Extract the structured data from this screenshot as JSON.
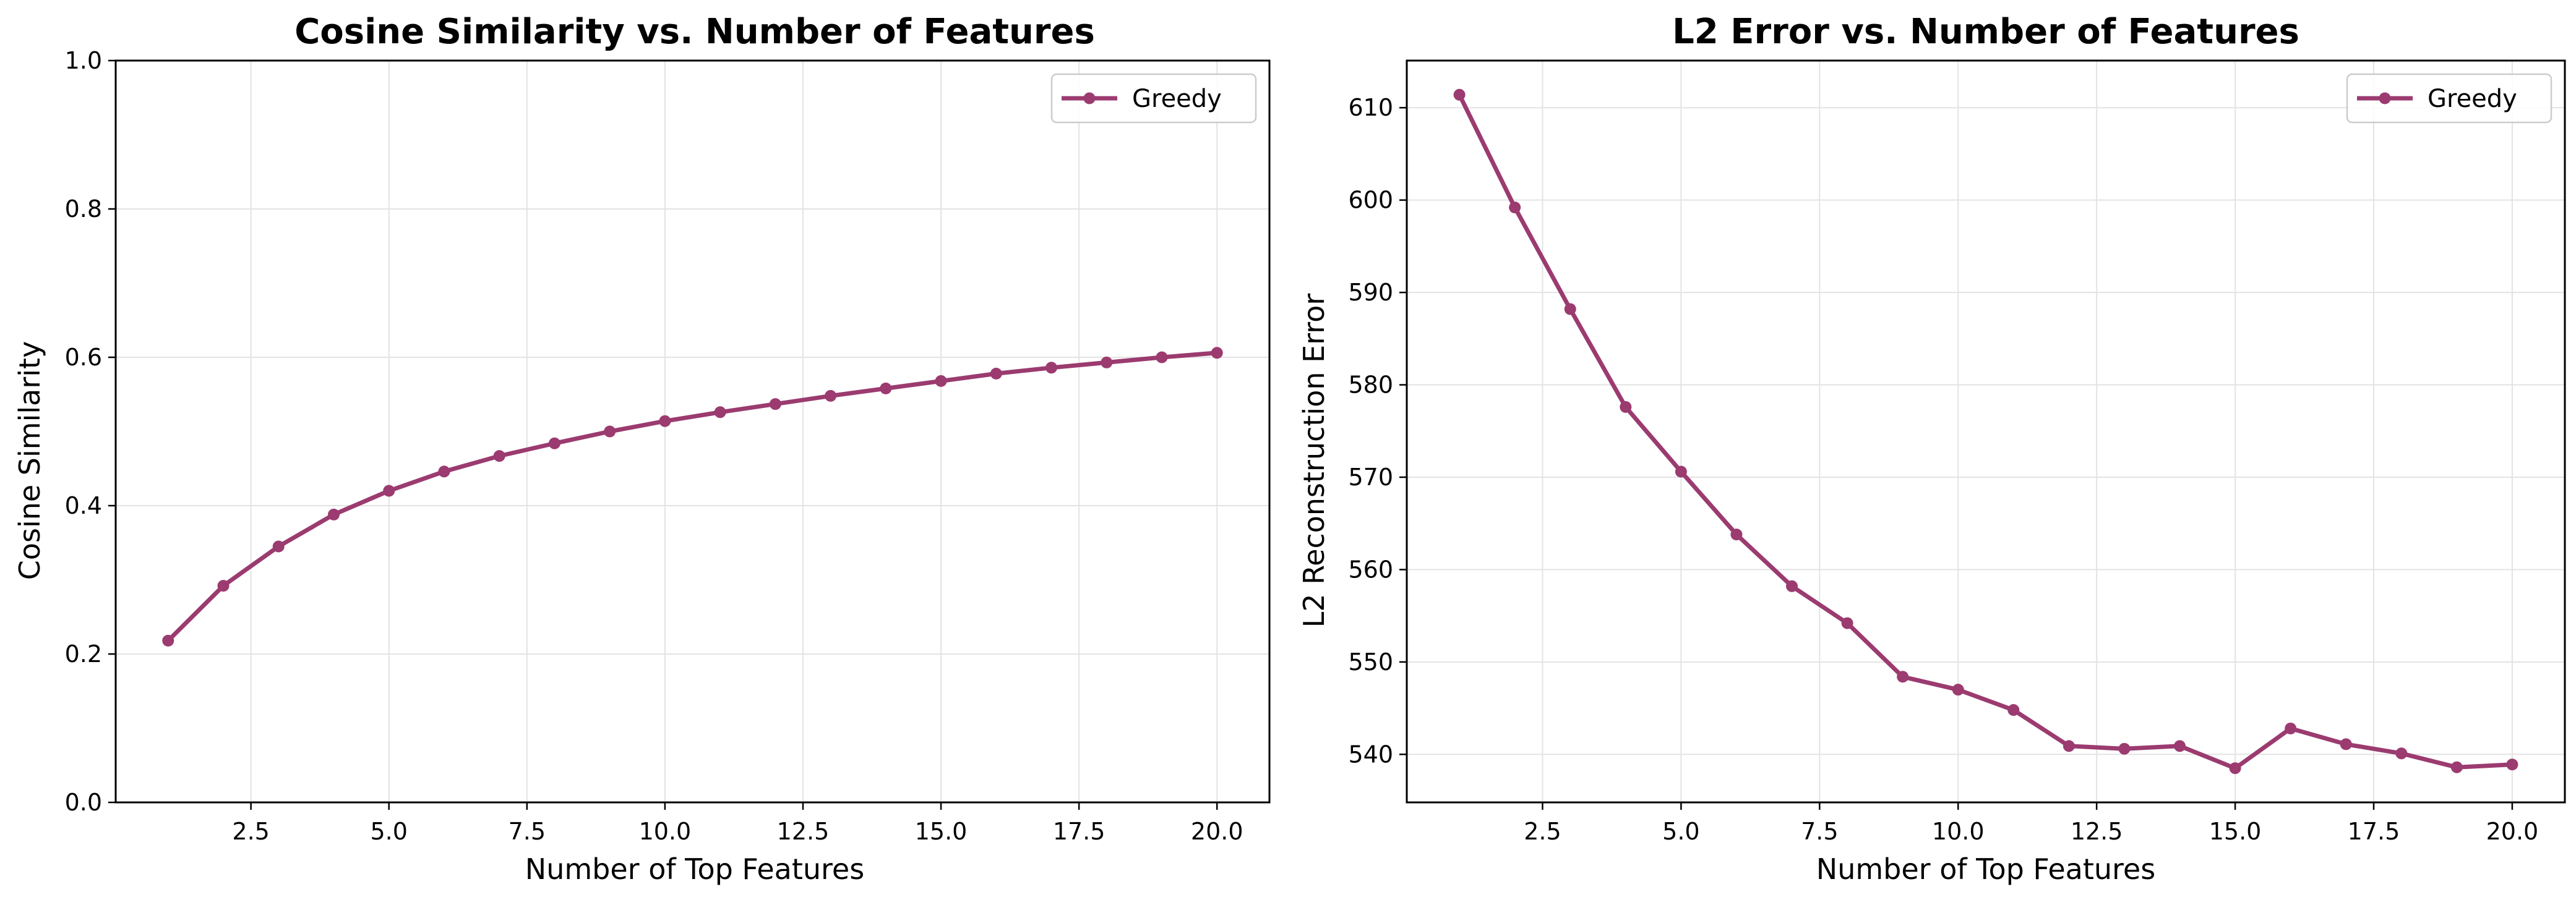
{
  "figure": {
    "line_color": "#9b3b70",
    "grid_color": "#e3e3e3",
    "axis_color": "#000000",
    "background": "#ffffff"
  },
  "chart_data": [
    {
      "type": "line",
      "title": "Cosine Similarity vs. Number of Features",
      "xlabel": "Number of Top Features",
      "ylabel": "Cosine Similarity",
      "xlim": [
        0.05,
        20.95
      ],
      "ylim": [
        0.0,
        1.0
      ],
      "xticks": [
        2.5,
        5.0,
        7.5,
        10.0,
        12.5,
        15.0,
        17.5,
        20.0
      ],
      "xtick_labels": [
        "2.5",
        "5.0",
        "7.5",
        "10.0",
        "12.5",
        "15.0",
        "17.5",
        "20.0"
      ],
      "yticks": [
        0.0,
        0.2,
        0.4,
        0.6,
        0.8,
        1.0
      ],
      "ytick_labels": [
        "0.0",
        "0.2",
        "0.4",
        "0.6",
        "0.8",
        "1.0"
      ],
      "grid": true,
      "legend_position": "top-right",
      "x": [
        1,
        2,
        3,
        4,
        5,
        6,
        7,
        8,
        9,
        10,
        11,
        12,
        13,
        14,
        15,
        16,
        17,
        18,
        19,
        20
      ],
      "series": [
        {
          "name": "Greedy",
          "color": "#9b3b70",
          "marker": "circle",
          "values": [
            0.218,
            0.292,
            0.345,
            0.388,
            0.42,
            0.446,
            0.467,
            0.484,
            0.5,
            0.514,
            0.526,
            0.537,
            0.548,
            0.558,
            0.568,
            0.578,
            0.586,
            0.593,
            0.6,
            0.606
          ]
        }
      ]
    },
    {
      "type": "line",
      "title": "L2 Error vs. Number of Features",
      "xlabel": "Number of Top Features",
      "ylabel": "L2 Reconstruction Error",
      "xlim": [
        0.05,
        20.95
      ],
      "ylim": [
        534.8,
        615.1
      ],
      "xticks": [
        2.5,
        5.0,
        7.5,
        10.0,
        12.5,
        15.0,
        17.5,
        20.0
      ],
      "xtick_labels": [
        "2.5",
        "5.0",
        "7.5",
        "10.0",
        "12.5",
        "15.0",
        "17.5",
        "20.0"
      ],
      "yticks": [
        540,
        550,
        560,
        570,
        580,
        590,
        600,
        610
      ],
      "ytick_labels": [
        "540",
        "550",
        "560",
        "570",
        "580",
        "590",
        "600",
        "610"
      ],
      "grid": true,
      "legend_position": "top-right",
      "x": [
        1,
        2,
        3,
        4,
        5,
        6,
        7,
        8,
        9,
        10,
        11,
        12,
        13,
        14,
        15,
        16,
        17,
        18,
        19,
        20
      ],
      "series": [
        {
          "name": "Greedy",
          "color": "#9b3b70",
          "marker": "circle",
          "values": [
            611.4,
            599.2,
            588.2,
            577.6,
            570.6,
            563.8,
            558.2,
            554.2,
            548.4,
            547.0,
            544.8,
            540.9,
            540.6,
            540.9,
            538.5,
            542.8,
            541.1,
            540.1,
            538.6,
            538.9
          ]
        }
      ]
    }
  ]
}
